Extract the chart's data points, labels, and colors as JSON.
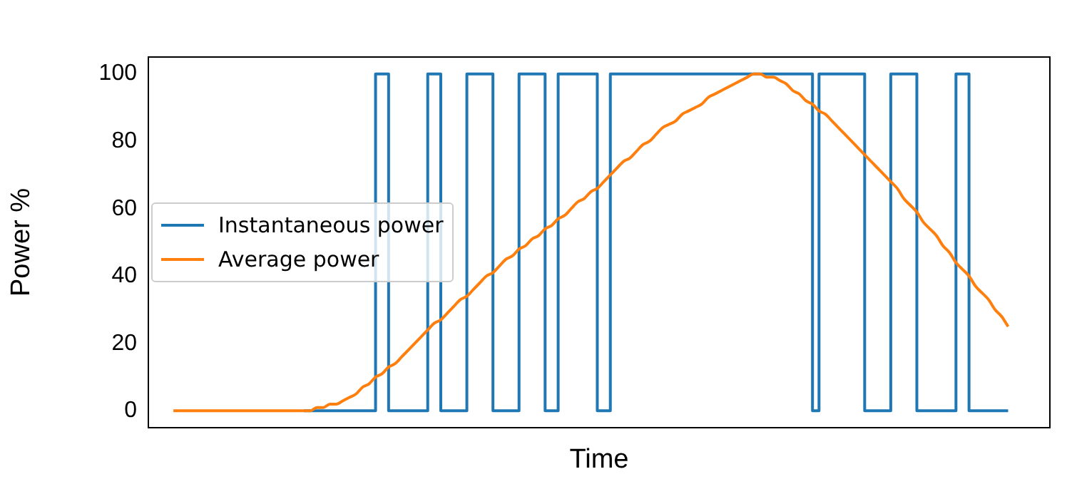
{
  "chart_data": {
    "type": "line",
    "xlabel": "Time",
    "ylabel": "Power %",
    "ylim": [
      -5,
      105
    ],
    "yticks": [
      0,
      20,
      40,
      60,
      80,
      100
    ],
    "tick_labels": "y",
    "grid": false,
    "legend": "center left",
    "categories": [
      null,
      null,
      null,
      null,
      null,
      null,
      null,
      null,
      null,
      null,
      null,
      null,
      null,
      null,
      null,
      null,
      null,
      null,
      null,
      null,
      null,
      null,
      null,
      null,
      null,
      null,
      null,
      null,
      null,
      null,
      null,
      null,
      null,
      null,
      null,
      null,
      null,
      null,
      null,
      null,
      null,
      null,
      null,
      null,
      null,
      null,
      null,
      null,
      null,
      null,
      null,
      null,
      null,
      null,
      null,
      null,
      null,
      null,
      null,
      null,
      null,
      null,
      null,
      null,
      null,
      null,
      null,
      null,
      null,
      null,
      null,
      null,
      null,
      null,
      null,
      null,
      null,
      null,
      null,
      null,
      null,
      null,
      null,
      null,
      null,
      null,
      null,
      null,
      null,
      null,
      null,
      null,
      null,
      null,
      null,
      null,
      null,
      null,
      null,
      null,
      null,
      null,
      null,
      null,
      null,
      null,
      null,
      null,
      null,
      null,
      null,
      null,
      null,
      null,
      null,
      null,
      null,
      null,
      null,
      null,
      null,
      null,
      null,
      null,
      null,
      null,
      null,
      null,
      null
    ],
    "series": [
      {
        "name": "Instantaneous power",
        "type": "step",
        "color": "#1f77b4",
        "values": [
          null,
          null,
          null,
          null,
          null,
          null,
          null,
          null,
          null,
          null,
          null,
          null,
          null,
          null,
          null,
          null,
          null,
          null,
          null,
          null,
          0,
          0,
          0,
          0,
          0,
          0,
          0,
          0,
          0,
          0,
          0,
          100,
          100,
          0,
          0,
          0,
          0,
          0,
          0,
          100,
          100,
          0,
          0,
          0,
          0,
          100,
          100,
          100,
          100,
          0,
          0,
          0,
          0,
          100,
          100,
          100,
          100,
          0,
          0,
          100,
          100,
          100,
          100,
          100,
          100,
          0,
          0,
          100,
          100,
          100,
          100,
          100,
          100,
          100,
          100,
          100,
          100,
          100,
          100,
          100,
          100,
          100,
          100,
          100,
          100,
          100,
          100,
          100,
          100,
          100,
          100,
          100,
          100,
          100,
          100,
          100,
          100,
          100,
          0,
          100,
          100,
          100,
          100,
          100,
          100,
          100,
          0,
          0,
          0,
          0,
          100,
          100,
          100,
          100,
          0,
          0,
          0,
          0,
          0,
          0,
          100,
          100,
          0,
          0,
          0,
          0,
          0,
          0,
          0
        ]
      },
      {
        "name": "Average power",
        "type": "line",
        "color": "#ff7f0e",
        "values": [
          0,
          0,
          0,
          0,
          0,
          0,
          0,
          0,
          0,
          0,
          0,
          0,
          0,
          0,
          0,
          0,
          0,
          0,
          0,
          0,
          0,
          0,
          1,
          1,
          2,
          2,
          3,
          4,
          5,
          7,
          8,
          10,
          11,
          13,
          14,
          16,
          18,
          20,
          22,
          24,
          26,
          27,
          29,
          31,
          33,
          34,
          36,
          38,
          40,
          41,
          43,
          45,
          46,
          48,
          49,
          51,
          52,
          54,
          55,
          57,
          58,
          60,
          62,
          63,
          65,
          66,
          68,
          70,
          72,
          74,
          75,
          77,
          79,
          80,
          82,
          84,
          85,
          86,
          88,
          89,
          90,
          91,
          93,
          94,
          95,
          96,
          97,
          98,
          99,
          100,
          100,
          99,
          99,
          98,
          97,
          95,
          94,
          92,
          91,
          89,
          88,
          86,
          84,
          82,
          80,
          78,
          76,
          74,
          72,
          70,
          68,
          66,
          63,
          61,
          59,
          56,
          54,
          52,
          49,
          47,
          44,
          42,
          40,
          37,
          35,
          33,
          30,
          28,
          25
        ]
      }
    ]
  }
}
